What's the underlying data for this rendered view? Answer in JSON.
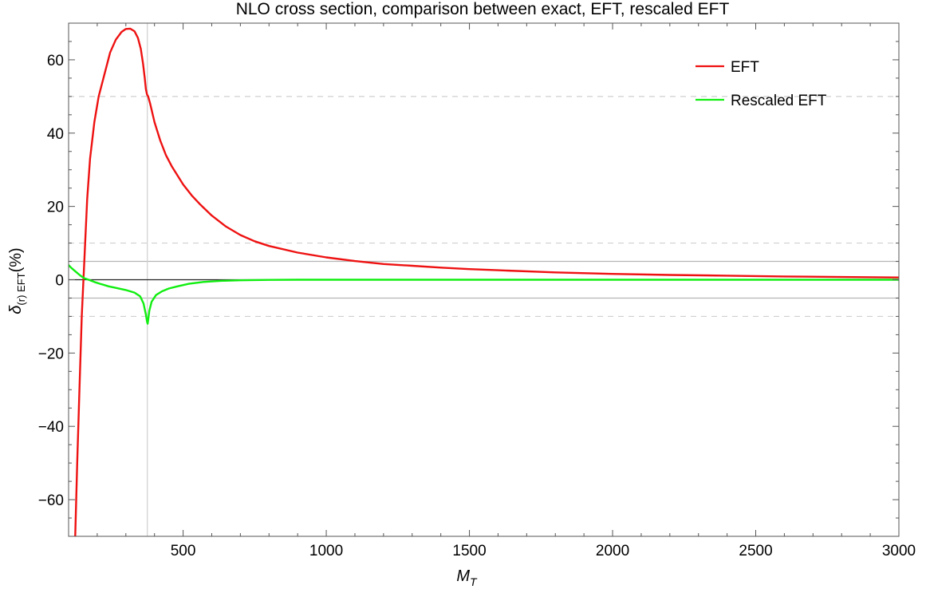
{
  "chart_data": {
    "type": "line",
    "title": "NLO cross section, comparison between exact, EFT, rescaled EFT",
    "xlabel": "M",
    "xlabel_sub": "T",
    "ylabel_main": "δ",
    "ylabel_sub": "(r) EFT",
    "ylabel_tail": "(%)",
    "xlim": [
      100,
      3000
    ],
    "ylim": [
      -70,
      70
    ],
    "xticks": [
      500,
      1000,
      1500,
      2000,
      2500,
      3000
    ],
    "yticks": [
      -60,
      -40,
      -20,
      0,
      20,
      40,
      60
    ],
    "xtick_labels": [
      "500",
      "1000",
      "1500",
      "2000",
      "2500",
      "3000"
    ],
    "ytick_labels": [
      "−60",
      "−40",
      "−20",
      "0",
      "20",
      "40",
      "60"
    ],
    "reference_lines": {
      "solid_gray_y": [
        5,
        -5
      ],
      "dashed_gray_y": [
        50,
        10,
        -10
      ],
      "solid_black_y": [
        0
      ],
      "vertical_gray_x": [
        375
      ]
    },
    "legend_position": "top-right",
    "series": [
      {
        "name": "EFT",
        "color": "#ee1111",
        "x": [
          123,
          130,
          138,
          146,
          155,
          165,
          175,
          190,
          205,
          225,
          245,
          265,
          285,
          300,
          315,
          330,
          342,
          352,
          360,
          366,
          370,
          374,
          378,
          385,
          400,
          420,
          440,
          460,
          480,
          500,
          530,
          560,
          600,
          650,
          700,
          750,
          800,
          900,
          1000,
          1100,
          1200,
          1300,
          1400,
          1500,
          1600,
          1800,
          2000,
          2200,
          2400,
          2600,
          2800,
          3000
        ],
        "y": [
          -70,
          -50,
          -30,
          -10,
          5,
          22,
          33,
          43,
          50,
          56,
          62,
          65.5,
          67.6,
          68.4,
          68.5,
          67.8,
          66,
          63,
          59,
          55,
          52,
          50.5,
          50,
          48,
          43,
          38,
          34,
          31,
          28.5,
          26,
          23,
          20.5,
          17.5,
          14.5,
          12.2,
          10.5,
          9.2,
          7.4,
          6.1,
          5.1,
          4.3,
          3.8,
          3.3,
          2.9,
          2.6,
          2.0,
          1.6,
          1.3,
          1.1,
          0.9,
          0.75,
          0.6
        ]
      },
      {
        "name": "Rescaled EFT",
        "color": "#11ee11",
        "x": [
          100,
          110,
          125,
          140,
          155,
          170,
          190,
          210,
          240,
          270,
          300,
          330,
          350,
          362,
          370,
          374,
          376,
          378,
          382,
          390,
          405,
          425,
          450,
          480,
          520,
          570,
          630,
          700,
          800,
          900,
          1000,
          1200,
          1500,
          2000,
          2500,
          3000
        ],
        "y": [
          4,
          3.2,
          2.2,
          1.2,
          0.4,
          0,
          -0.6,
          -1.1,
          -1.8,
          -2.3,
          -2.8,
          -3.5,
          -4.5,
          -6.5,
          -9.5,
          -11.5,
          -12,
          -11,
          -8.5,
          -6,
          -4.2,
          -3.2,
          -2.4,
          -1.8,
          -1.1,
          -0.6,
          -0.3,
          -0.15,
          -0.05,
          0,
          0,
          0,
          0,
          0,
          0,
          0
        ]
      }
    ]
  }
}
